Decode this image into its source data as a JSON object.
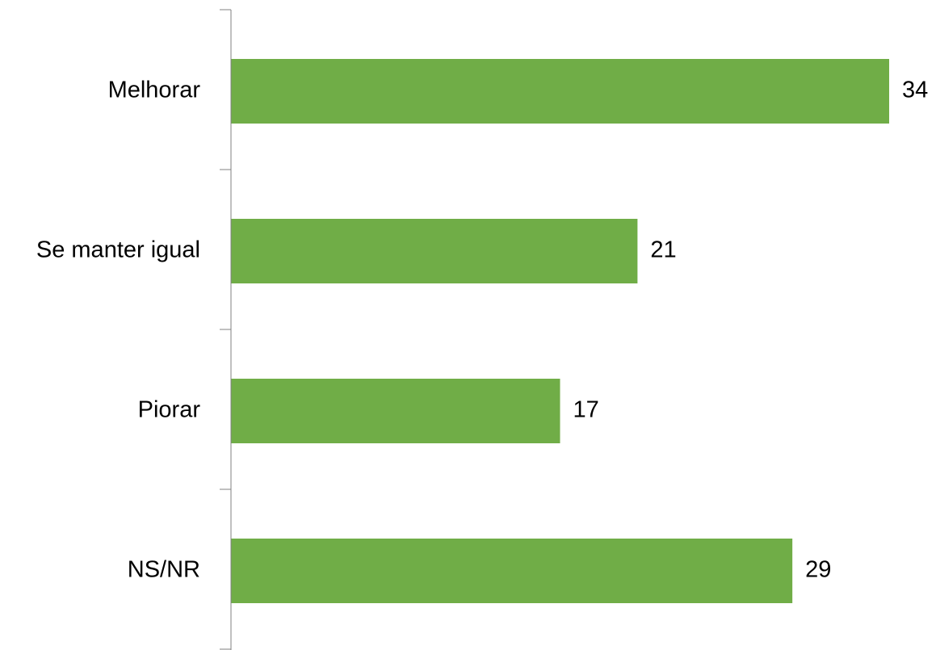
{
  "chart_data": {
    "type": "bar",
    "orientation": "horizontal",
    "title": "",
    "xlabel": "",
    "ylabel": "",
    "categories": [
      "Melhorar",
      "Se manter igual",
      "Piorar",
      "NS/NR"
    ],
    "values": [
      34,
      21,
      17,
      29
    ],
    "data_labels": [
      "34",
      "21",
      "17",
      "29"
    ],
    "xlim": [
      0,
      34
    ],
    "grid": false,
    "legend": "none",
    "bar_color": "#70AD47",
    "axis_color": "#808080"
  }
}
